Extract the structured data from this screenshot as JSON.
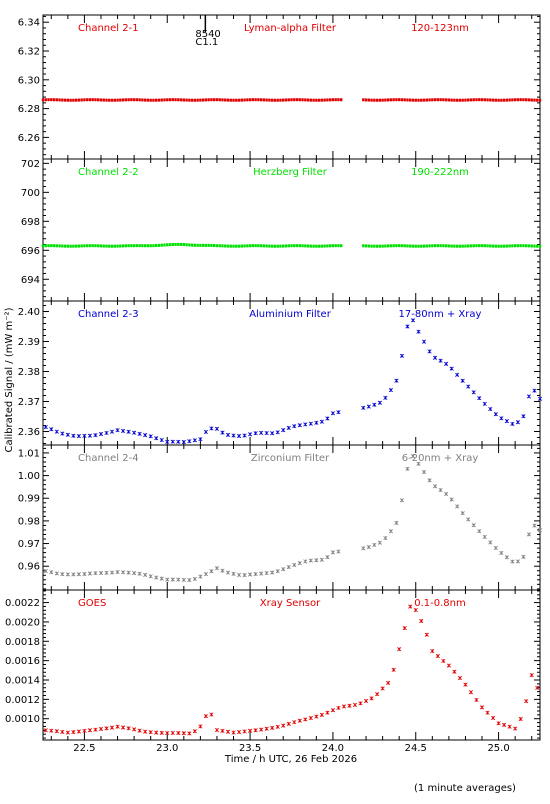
{
  "figure": {
    "ylabel": "Calibrated Signal / (mW m⁻²)",
    "xlabel": "Time / h UTC, 26 Feb 2026",
    "footnote": "(1 minute averages)",
    "marker_text": [
      "8540",
      "C1.1"
    ],
    "marker_time": 23.23
  },
  "chart_data": [
    {
      "type": "scatter",
      "channel": "Channel 2-1",
      "filter": "Lyman-alpha Filter",
      "band": "120-123nm",
      "color": "#e00000",
      "xlim": [
        22.25,
        25.25
      ],
      "ylim": [
        6.245,
        6.345
      ],
      "yticks": [
        6.26,
        6.28,
        6.3,
        6.32,
        6.34
      ],
      "ydec": 2,
      "gap": [
        24.05,
        24.18
      ],
      "series": [
        {
          "x": [
            22.25,
            23.0,
            23.5,
            24.0,
            24.2,
            24.5,
            25.0,
            25.25
          ],
          "y": [
            6.286,
            6.286,
            6.286,
            6.286,
            6.286,
            6.286,
            6.286,
            6.286
          ]
        }
      ]
    },
    {
      "type": "scatter",
      "channel": "Channel 2-2",
      "filter": "Herzberg Filter",
      "band": "190-222nm",
      "color": "#00e000",
      "xlim": [
        22.25,
        25.25
      ],
      "ylim": [
        692.5,
        702.3
      ],
      "yticks": [
        694,
        696,
        698,
        700,
        702
      ],
      "ydec": 0,
      "gap": [
        24.05,
        24.18
      ],
      "series": [
        {
          "x": [
            22.25,
            22.8,
            23.1,
            23.3,
            23.7,
            24.0,
            24.2,
            24.6,
            25.0,
            25.25
          ],
          "y": [
            696.3,
            696.3,
            696.4,
            696.3,
            696.3,
            696.3,
            696.3,
            696.3,
            696.3,
            696.3
          ]
        }
      ]
    },
    {
      "type": "scatter",
      "channel": "Channel 2-3",
      "filter": "Aluminium Filter",
      "band": "17-80nm + Xray",
      "color": "#0000d0",
      "xlim": [
        22.25,
        25.25
      ],
      "ylim": [
        2.3555,
        2.4035
      ],
      "yticks": [
        2.36,
        2.37,
        2.38,
        2.39,
        2.4
      ],
      "ydec": 2,
      "gap": [
        24.05,
        24.18
      ],
      "series": [
        {
          "x": [
            22.25,
            22.35,
            22.45,
            22.55,
            22.65,
            22.7,
            22.8,
            22.9,
            23.0,
            23.1,
            23.2,
            23.25,
            23.3,
            23.35,
            23.45,
            23.55,
            23.65,
            23.75,
            23.85,
            23.95,
            24.0,
            24.2,
            24.3,
            24.38,
            24.42,
            24.45,
            24.48,
            24.52,
            24.6,
            24.7,
            24.8,
            24.9,
            25.0,
            25.1,
            25.15,
            25.2,
            25.25
          ],
          "y": [
            2.3618,
            2.3595,
            2.3585,
            2.3585,
            2.3598,
            2.3605,
            2.3595,
            2.3585,
            2.3565,
            2.3565,
            2.3575,
            2.361,
            2.3608,
            2.359,
            2.3585,
            2.3595,
            2.3595,
            2.3615,
            2.3625,
            2.3635,
            2.366,
            2.368,
            2.37,
            2.376,
            2.386,
            2.395,
            2.3975,
            2.393,
            2.385,
            2.382,
            2.376,
            2.37,
            2.365,
            2.362,
            2.365,
            2.375,
            2.371
          ]
        }
      ]
    },
    {
      "type": "scatter",
      "channel": "Channel 2-4",
      "filter": "Zirconium Filter",
      "band": "6-20nm + Xray",
      "color": "#808080",
      "xlim": [
        22.25,
        25.25
      ],
      "ylim": [
        0.9495,
        1.0135
      ],
      "yticks": [
        0.96,
        0.97,
        0.98,
        0.99,
        1.0,
        1.01
      ],
      "ydec": 2,
      "gap": [
        24.05,
        24.18
      ],
      "series": [
        {
          "x": [
            22.25,
            22.35,
            22.5,
            22.7,
            22.85,
            23.0,
            23.15,
            23.25,
            23.3,
            23.35,
            23.45,
            23.55,
            23.65,
            23.75,
            23.85,
            23.95,
            24.0,
            24.2,
            24.3,
            24.38,
            24.42,
            24.45,
            24.48,
            24.52,
            24.6,
            24.7,
            24.8,
            24.9,
            25.0,
            25.1,
            25.15,
            25.2,
            25.25
          ],
          "y": [
            0.958,
            0.9565,
            0.9565,
            0.9575,
            0.9565,
            0.954,
            0.954,
            0.957,
            0.959,
            0.9575,
            0.956,
            0.9565,
            0.9575,
            0.96,
            0.9625,
            0.963,
            0.966,
            0.968,
            0.971,
            0.978,
            0.99,
            1.003,
            1.009,
            1.005,
            0.996,
            0.991,
            0.982,
            0.974,
            0.967,
            0.961,
            0.964,
            0.979,
            0.976
          ]
        }
      ]
    },
    {
      "type": "scatter",
      "channel": "GOES",
      "filter": "Xray Sensor",
      "band": "0.1-0.8nm",
      "color": "#e00000",
      "xlim": [
        22.25,
        25.25
      ],
      "ylim": [
        0.00078,
        0.00233
      ],
      "yticks": [
        0.001,
        0.0012,
        0.0014,
        0.0016,
        0.0018,
        0.002,
        0.0022
      ],
      "ydec": 4,
      "gap": null,
      "series": [
        {
          "x": [
            22.25,
            22.4,
            22.55,
            22.7,
            22.85,
            23.0,
            23.15,
            23.22,
            23.25,
            23.3,
            23.4,
            23.55,
            23.7,
            23.85,
            23.95,
            24.05,
            24.15,
            24.25,
            24.35,
            24.42,
            24.47,
            24.5,
            24.55,
            24.6,
            24.7,
            24.8,
            24.9,
            25.0,
            25.1,
            25.15,
            25.2,
            25.25
          ],
          "y": [
            0.00088,
            0.00086,
            0.00088,
            0.00092,
            0.00087,
            0.00085,
            0.00085,
            0.00095,
            0.00112,
            0.00088,
            0.00086,
            0.00088,
            0.00093,
            0.001,
            0.00105,
            0.00112,
            0.00115,
            0.00122,
            0.0014,
            0.00185,
            0.00218,
            0.00212,
            0.00195,
            0.0017,
            0.00155,
            0.00135,
            0.00112,
            0.00095,
            0.0009,
            0.00105,
            0.00145,
            0.00125
          ]
        }
      ]
    }
  ],
  "shared_x": {
    "ticks": [
      22.5,
      23.0,
      23.5,
      24.0,
      24.5,
      25.0
    ],
    "tick_labels": [
      "22.5",
      "23.0",
      "23.5",
      "24.0",
      "24.5",
      "25.0"
    ]
  }
}
